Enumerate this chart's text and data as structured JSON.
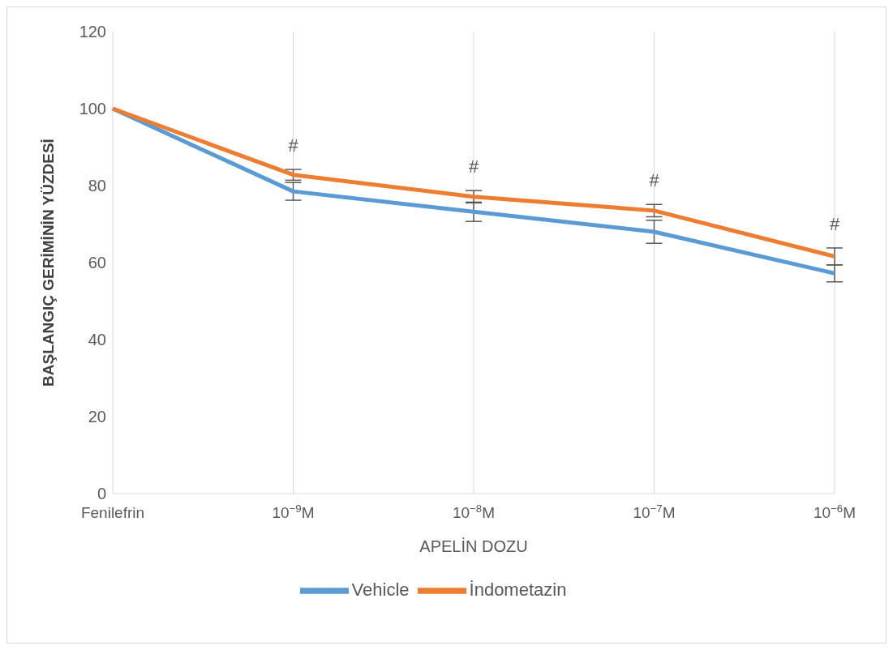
{
  "chart_data": {
    "type": "line",
    "xlabel": "APELİN DOZU",
    "ylabel": "BAŞLANGIÇ GERİMİNİN YÜZDESİ",
    "categories": [
      "Fenilefrin",
      "10$^{−9}$M",
      "10$^{−8}$M",
      "10$^{−7}$M",
      "10$^{−6}$M"
    ],
    "series": [
      {
        "name": "Vehicle",
        "color": "#5b9bd5",
        "values": [
          100,
          78.5,
          73.2,
          68,
          57.2
        ],
        "errors": [
          null,
          2.3,
          2.5,
          3,
          2.2
        ]
      },
      {
        "name": "İndometazin",
        "color": "#ed7d31",
        "values": [
          100,
          82.8,
          77.1,
          73.5,
          61.6
        ],
        "errors": [
          null,
          1.4,
          1.6,
          1.6,
          2.2
        ]
      }
    ],
    "annotations": [
      "#",
      "#",
      "#",
      "#"
    ],
    "ylim": [
      0,
      120
    ],
    "yticks": [
      0,
      20,
      40,
      60,
      80,
      100,
      120
    ],
    "grid": "x",
    "legend": "bottom",
    "marker": "none",
    "line_style": "solid"
  }
}
